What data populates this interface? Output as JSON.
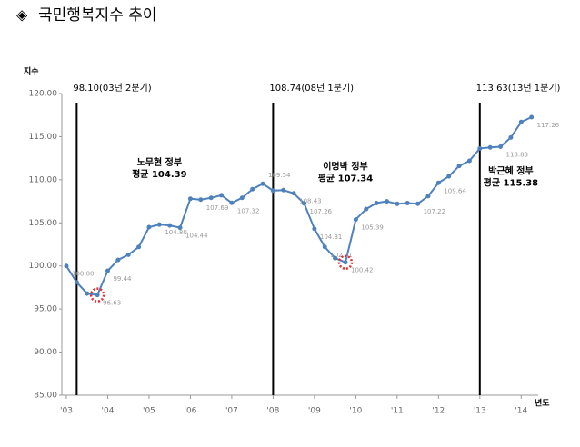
{
  "chart_data": {
    "type": "line",
    "title": "국민행복지수 추이",
    "title_symbol": "◈",
    "y_axis_label": "지수",
    "x_axis_label": "년도",
    "categories": [
      "'03",
      null,
      null,
      null,
      "'04",
      null,
      null,
      null,
      "'05",
      null,
      null,
      null,
      "'06",
      null,
      null,
      null,
      "'07",
      null,
      null,
      null,
      "'08",
      null,
      null,
      null,
      "'09",
      null,
      null,
      null,
      "'10",
      null,
      null,
      null,
      "'11",
      null,
      null,
      null,
      "'12",
      null,
      null,
      null,
      "'13",
      null,
      null,
      null,
      "'14",
      null
    ],
    "series": [
      {
        "name": "국민행복지수",
        "color": "#4f81bd",
        "values": [
          100.0,
          98.1,
          96.8,
          96.63,
          99.44,
          100.7,
          101.3,
          102.2,
          104.5,
          104.8,
          104.7,
          104.44,
          107.8,
          107.69,
          107.9,
          108.2,
          107.32,
          107.9,
          108.9,
          109.54,
          108.74,
          108.8,
          108.43,
          107.26,
          104.31,
          102.21,
          100.9,
          100.42,
          105.39,
          106.6,
          107.3,
          107.5,
          107.2,
          107.3,
          107.22,
          108.1,
          109.64,
          110.4,
          111.6,
          112.2,
          113.63,
          113.75,
          113.83,
          114.9,
          116.7,
          117.26
        ],
        "value_labels": [
          "100.00",
          null,
          null,
          "96.63",
          "99.44",
          null,
          null,
          null,
          null,
          "104.80",
          null,
          "104.44",
          null,
          "107.69",
          null,
          null,
          "107.32",
          null,
          null,
          "109.54",
          null,
          null,
          "108.43",
          "107.26",
          "104.31",
          "102.21",
          null,
          "100.42",
          "105.39",
          null,
          null,
          null,
          null,
          null,
          "107.22",
          null,
          "109.64",
          null,
          null,
          null,
          null,
          null,
          "113.83",
          null,
          null,
          "117.26"
        ]
      }
    ],
    "ylim": [
      85,
      120
    ],
    "yticks": [
      {
        "value": 85,
        "label": "85.00"
      },
      {
        "value": 90,
        "label": "90.00"
      },
      {
        "value": 95,
        "label": "95.00"
      },
      {
        "value": 100,
        "label": "100.00"
      },
      {
        "value": 105,
        "label": "105.00"
      },
      {
        "value": 110,
        "label": "110.00"
      },
      {
        "value": 115,
        "label": "115.00"
      },
      {
        "value": 120,
        "label": "120.00"
      }
    ],
    "markers": [
      {
        "index": 1,
        "label": "98.10(03년 2분기)"
      },
      {
        "index": 20,
        "label": "108.74(08년 1분기)"
      },
      {
        "index": 40,
        "label": "113.63(13년 1분기)"
      }
    ],
    "highlights": [
      3,
      27
    ],
    "highlight_color": "#e03030",
    "annotations": [
      {
        "lines": [
          "노무현 정부",
          "평균 104.39"
        ],
        "index": 9,
        "value": 112.0
      },
      {
        "lines": [
          "이명박 정부",
          "평균 107.34"
        ],
        "index": 27,
        "value": 111.5
      },
      {
        "lines": [
          "박근혜 정부",
          "평균 115.38"
        ],
        "index": 43,
        "value": 111.0
      }
    ]
  }
}
